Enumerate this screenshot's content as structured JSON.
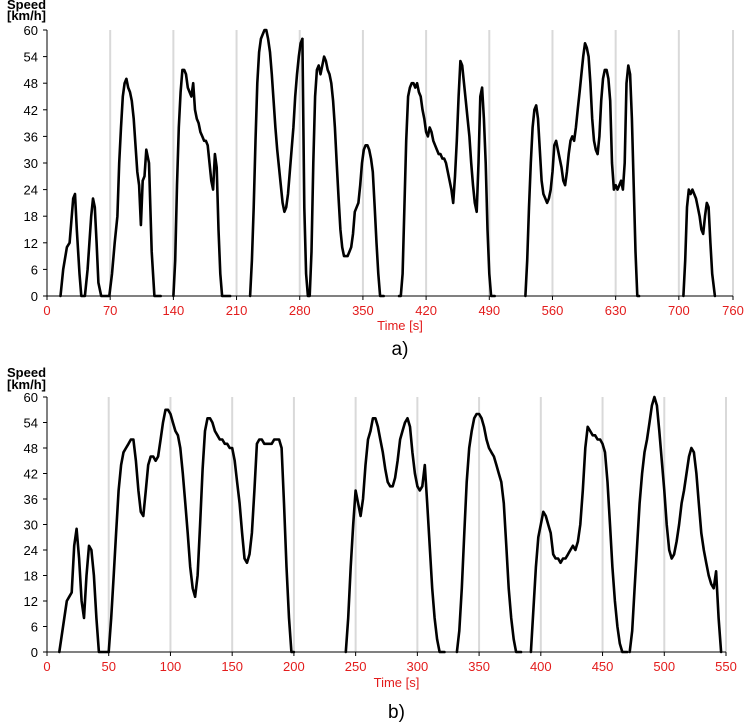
{
  "chart_data": [
    {
      "type": "line",
      "caption": "a)",
      "xlabel": "Time [s]",
      "ylabel_line1": "Speed",
      "ylabel_line2": "[km/h]",
      "xlim": [
        0,
        760
      ],
      "ylim": [
        0,
        60
      ],
      "xticks": [
        0,
        70,
        140,
        210,
        280,
        350,
        420,
        490,
        560,
        630,
        700,
        760
      ],
      "yticks": [
        0,
        6,
        12,
        18,
        24,
        30,
        36,
        42,
        48,
        54,
        60
      ],
      "grid": true,
      "series": [
        {
          "x": [
            15,
            18,
            22,
            25,
            27,
            29,
            31,
            33,
            36,
            38,
            42,
            45,
            47,
            49,
            51,
            53,
            55,
            57,
            60,
            63,
            66,
            69,
            72,
            75,
            78,
            80,
            82,
            84,
            86,
            88,
            90,
            92,
            94,
            96,
            98,
            100,
            102,
            104,
            106,
            108,
            110,
            113,
            116,
            119,
            122,
            124,
            126
          ],
          "y": [
            0,
            6,
            11,
            12,
            17,
            22,
            23,
            15,
            5,
            0,
            0,
            6,
            12,
            18,
            22,
            20,
            12,
            3,
            0,
            0,
            0,
            0,
            5,
            12,
            18,
            30,
            38,
            45,
            48,
            49,
            47,
            46,
            44,
            40,
            34,
            28,
            25,
            16,
            26,
            27,
            33,
            30,
            10,
            0,
            0,
            0,
            0
          ]
        },
        {
          "x": [
            140,
            142,
            144,
            146,
            148,
            150,
            152,
            154,
            156,
            158,
            160,
            162,
            164,
            166,
            168,
            170,
            172,
            174,
            176,
            178,
            180,
            182,
            184,
            186,
            188,
            190,
            192,
            194,
            196,
            198,
            200,
            203
          ],
          "y": [
            0,
            8,
            25,
            38,
            46,
            51,
            51,
            50,
            47,
            46,
            45,
            48,
            42,
            40,
            39,
            37,
            36,
            35,
            35,
            34,
            30,
            26,
            24,
            32,
            29,
            15,
            5,
            0,
            0,
            0,
            0,
            0
          ]
        },
        {
          "x": [
            225,
            227,
            229,
            231,
            233,
            235,
            237,
            239,
            241,
            243,
            245,
            247,
            249,
            251,
            253,
            255,
            257,
            259,
            261,
            263,
            265,
            267,
            269,
            271,
            273,
            275,
            277,
            279,
            281,
            283
          ],
          "y": [
            0,
            8,
            20,
            35,
            48,
            55,
            58,
            59,
            60,
            60,
            58,
            55,
            50,
            44,
            38,
            33,
            29,
            25,
            21,
            19,
            20,
            23,
            28,
            33,
            38,
            45,
            50,
            54,
            57,
            58
          ]
        },
        {
          "x": [
            283,
            285,
            287,
            289,
            291,
            293,
            295,
            297,
            299,
            301,
            303,
            305,
            307,
            309,
            311,
            313,
            315,
            317,
            319,
            321,
            323,
            325,
            327,
            329,
            331,
            333,
            335,
            337,
            339,
            341,
            343,
            345,
            347,
            349,
            351,
            353,
            355,
            357,
            359,
            361,
            363,
            365,
            367,
            369,
            371,
            373
          ],
          "y": [
            58,
            20,
            5,
            0,
            0,
            10,
            30,
            45,
            51,
            52,
            50,
            52,
            54,
            53,
            51,
            50,
            48,
            44,
            38,
            30,
            22,
            15,
            11,
            9,
            9,
            9,
            10,
            11,
            14,
            19,
            20,
            21,
            25,
            30,
            33,
            34,
            34,
            33,
            31,
            28,
            20,
            12,
            5,
            0,
            0,
            0
          ]
        },
        {
          "x": [
            390,
            392,
            394,
            396,
            398,
            400,
            402,
            404,
            406,
            408,
            410,
            412,
            414,
            416,
            418,
            420,
            422,
            424,
            426,
            428,
            430,
            432,
            434,
            436,
            438,
            440,
            442,
            444,
            446,
            448,
            450,
            452,
            454,
            456,
            458,
            460,
            462,
            464,
            466,
            468,
            470,
            472,
            474,
            476,
            478,
            480,
            482,
            484,
            486,
            488,
            490,
            492,
            494,
            496
          ],
          "y": [
            0,
            0,
            5,
            20,
            35,
            45,
            47,
            48,
            48,
            47,
            48,
            46,
            45,
            42,
            40,
            37,
            36,
            38,
            37,
            35,
            34,
            33,
            32,
            32,
            31,
            31,
            30,
            28,
            26,
            24,
            21,
            27,
            35,
            45,
            53,
            52,
            48,
            44,
            40,
            36,
            30,
            25,
            21,
            19,
            30,
            45,
            47,
            40,
            30,
            15,
            5,
            0,
            0,
            0
          ]
        },
        {
          "x": [
            530,
            532,
            534,
            536,
            538,
            540,
            542,
            544,
            546,
            548,
            550,
            552,
            554,
            556,
            558,
            560,
            562,
            564,
            566,
            568,
            570,
            572,
            574,
            576,
            578,
            580,
            582,
            584,
            586,
            588,
            590,
            592,
            594,
            596,
            598,
            600,
            602,
            604,
            606,
            608,
            610,
            612,
            614,
            616,
            618,
            620,
            622,
            624,
            626,
            628,
            630,
            632,
            634,
            636,
            638,
            640,
            642,
            644,
            646,
            648,
            650,
            652,
            654,
            656
          ],
          "y": [
            0,
            8,
            20,
            30,
            38,
            42,
            43,
            40,
            33,
            26,
            23,
            22,
            21,
            22,
            24,
            28,
            34,
            35,
            33,
            31,
            29,
            26,
            25,
            28,
            32,
            35,
            36,
            35,
            38,
            42,
            46,
            50,
            54,
            57,
            56,
            54,
            48,
            40,
            35,
            33,
            32,
            36,
            44,
            49,
            51,
            51,
            49,
            44,
            30,
            24,
            25,
            24,
            25,
            26,
            24,
            30,
            48,
            52,
            50,
            40,
            25,
            10,
            0,
            0
          ]
        },
        {
          "x": [
            705,
            707,
            709,
            711,
            713,
            715,
            717,
            719,
            721,
            723,
            725,
            727,
            729,
            731,
            733,
            735,
            737,
            740
          ],
          "y": [
            0,
            8,
            20,
            24,
            23,
            24,
            23,
            22,
            20,
            18,
            15,
            14,
            18,
            21,
            20,
            12,
            5,
            0
          ]
        }
      ]
    },
    {
      "type": "line",
      "caption": "b)",
      "xlabel": "Time [s]",
      "ylabel_line1": "Speed",
      "ylabel_line2": "[km/h]",
      "xlim": [
        0,
        550
      ],
      "ylim": [
        0,
        60
      ],
      "xticks": [
        0,
        50,
        100,
        150,
        200,
        250,
        300,
        350,
        400,
        450,
        500,
        550
      ],
      "yticks": [
        0,
        6,
        12,
        18,
        24,
        30,
        36,
        42,
        48,
        54,
        60
      ],
      "grid": true,
      "series": [
        {
          "x": [
            10,
            12,
            14,
            16,
            18,
            20,
            22,
            24,
            26,
            28,
            30,
            32,
            34,
            36,
            38,
            40,
            42,
            44,
            46,
            48,
            50
          ],
          "y": [
            0,
            4,
            8,
            12,
            13,
            14,
            25,
            29,
            22,
            12,
            8,
            18,
            25,
            24,
            18,
            8,
            0,
            0,
            0,
            0,
            0
          ]
        },
        {
          "x": [
            50,
            52,
            54,
            56,
            58,
            60,
            62,
            64,
            66,
            68,
            70,
            72,
            74,
            76,
            78,
            80,
            82,
            84,
            86,
            88,
            90,
            92,
            94,
            96,
            98,
            100,
            102,
            104,
            106,
            108,
            110,
            112,
            114,
            116,
            118,
            120,
            122,
            124,
            126,
            128,
            130,
            132,
            134,
            136,
            138,
            140,
            142,
            144,
            146,
            148,
            150,
            152,
            154,
            156,
            158,
            160,
            162,
            164,
            166,
            168,
            170,
            172,
            174,
            176,
            178,
            180,
            182,
            184,
            186,
            188,
            190,
            192,
            194,
            196,
            198,
            200
          ],
          "y": [
            0,
            8,
            18,
            28,
            38,
            44,
            47,
            48,
            49,
            50,
            50,
            45,
            38,
            33,
            32,
            38,
            44,
            46,
            46,
            45,
            46,
            50,
            54,
            57,
            57,
            56,
            54,
            52,
            51,
            48,
            42,
            35,
            28,
            20,
            15,
            13,
            18,
            30,
            43,
            52,
            55,
            55,
            54,
            52,
            51,
            50,
            50,
            49,
            49,
            48,
            48,
            45,
            40,
            35,
            28,
            22,
            21,
            23,
            28,
            38,
            49,
            50,
            50,
            49,
            49,
            49,
            49,
            50,
            50,
            50,
            48,
            35,
            20,
            8,
            0,
            0
          ]
        },
        {
          "x": [
            242,
            244,
            246,
            248,
            250,
            252,
            254,
            256,
            258,
            260,
            262,
            264,
            266,
            268,
            270,
            272,
            274,
            276,
            278,
            280,
            282,
            284,
            286,
            288,
            290,
            292,
            294,
            296,
            298,
            300,
            302,
            304,
            306,
            308,
            310,
            312,
            314,
            316,
            318,
            320,
            322
          ],
          "y": [
            0,
            8,
            20,
            30,
            38,
            35,
            32,
            36,
            44,
            50,
            52,
            55,
            55,
            53,
            50,
            47,
            43,
            40,
            39,
            39,
            41,
            45,
            50,
            52,
            54,
            55,
            53,
            47,
            42,
            39,
            38,
            39,
            44,
            35,
            25,
            15,
            8,
            3,
            0,
            0,
            0
          ]
        },
        {
          "x": [
            332,
            334,
            336,
            338,
            340,
            342,
            344,
            346,
            348,
            350,
            352,
            354,
            356,
            358,
            360,
            362,
            364,
            366,
            368,
            370,
            372,
            374,
            376,
            378,
            380,
            382,
            384
          ],
          "y": [
            0,
            5,
            15,
            28,
            40,
            48,
            52,
            55,
            56,
            56,
            55,
            53,
            50,
            48,
            47,
            46,
            44,
            42,
            40,
            35,
            25,
            15,
            8,
            3,
            0,
            0,
            0
          ]
        },
        {
          "x": [
            392,
            394,
            396,
            398,
            400,
            402,
            404,
            406,
            408,
            410,
            412,
            414,
            416,
            418,
            420,
            422,
            424,
            426,
            428,
            430,
            432,
            434,
            436,
            438,
            440,
            442,
            444,
            446,
            448,
            450,
            452,
            454,
            456,
            458,
            460,
            462,
            464,
            466,
            468,
            470
          ],
          "y": [
            0,
            10,
            20,
            27,
            30,
            33,
            32,
            30,
            28,
            23,
            22,
            22,
            21,
            22,
            22,
            23,
            24,
            25,
            24,
            26,
            30,
            38,
            48,
            53,
            52,
            51,
            51,
            50,
            50,
            49,
            47,
            40,
            30,
            20,
            12,
            6,
            2,
            0,
            0,
            0
          ]
        },
        {
          "x": [
            472,
            474,
            476,
            478,
            480,
            482,
            484,
            486,
            488,
            490,
            492,
            494,
            496,
            498,
            500,
            502,
            504,
            506,
            508,
            510,
            512,
            514,
            516,
            518,
            520,
            522,
            524,
            526,
            528,
            530,
            532,
            534,
            536,
            538,
            540,
            542,
            544,
            546
          ],
          "y": [
            0,
            5,
            15,
            25,
            35,
            42,
            47,
            50,
            54,
            58,
            60,
            58,
            52,
            45,
            38,
            30,
            24,
            22,
            23,
            26,
            30,
            35,
            38,
            42,
            46,
            48,
            47,
            42,
            35,
            28,
            24,
            21,
            18,
            16,
            15,
            19,
            8,
            0
          ]
        }
      ]
    }
  ]
}
